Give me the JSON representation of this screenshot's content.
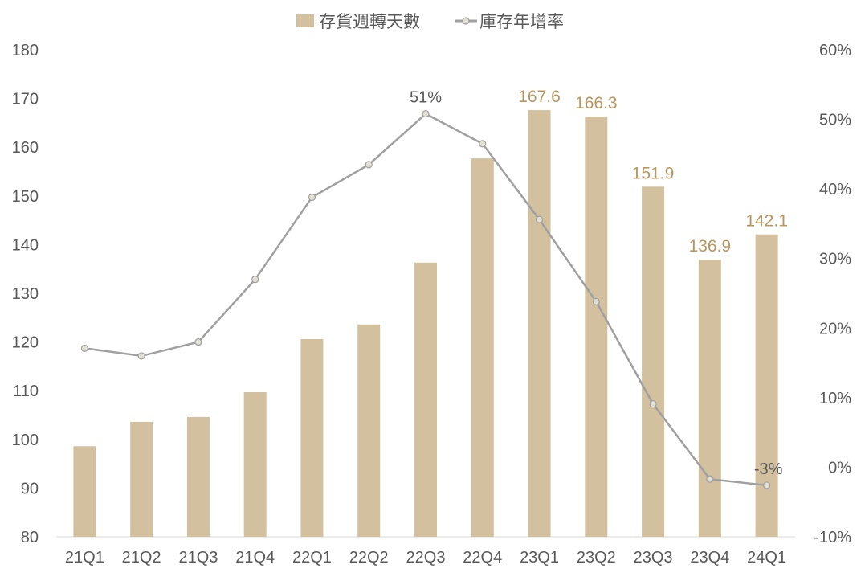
{
  "chart_data": {
    "type": "bar+line",
    "categories": [
      "21Q1",
      "21Q2",
      "21Q3",
      "21Q4",
      "22Q1",
      "22Q2",
      "22Q3",
      "22Q4",
      "23Q1",
      "23Q2",
      "23Q3",
      "23Q4",
      "24Q1"
    ],
    "series": [
      {
        "name": "存貨週轉天數",
        "type": "bar",
        "axis": "left",
        "color": "#d3c09f",
        "values": [
          98.6,
          103.6,
          104.6,
          109.7,
          120.6,
          123.6,
          136.3,
          157.7,
          167.6,
          166.3,
          151.9,
          136.9,
          142.1
        ],
        "data_labels": [
          null,
          null,
          null,
          null,
          null,
          null,
          null,
          null,
          "167.6",
          "166.3",
          "151.9",
          "136.9",
          "142.1"
        ],
        "label_color": "#b8965e"
      },
      {
        "name": "庫存年增率",
        "type": "line",
        "axis": "right",
        "color": "#a0a0a0",
        "values": [
          17.1,
          16.0,
          18.0,
          27.0,
          38.8,
          43.5,
          50.8,
          46.5,
          35.6,
          23.8,
          9.1,
          -1.7,
          -2.6
        ],
        "data_labels": [
          null,
          null,
          null,
          null,
          null,
          null,
          "51%",
          null,
          null,
          null,
          null,
          null,
          "-3%"
        ],
        "label_color": "#595959"
      }
    ],
    "left_axis": {
      "ylim": [
        80,
        180
      ],
      "ticks": [
        "80",
        "90",
        "100",
        "110",
        "120",
        "130",
        "140",
        "150",
        "160",
        "170",
        "180"
      ]
    },
    "right_axis": {
      "ylim": [
        -10,
        60
      ],
      "ticks": [
        "-10%",
        "0%",
        "10%",
        "20%",
        "30%",
        "40%",
        "50%",
        "60%"
      ]
    },
    "grid": false,
    "legend_position": "top"
  }
}
